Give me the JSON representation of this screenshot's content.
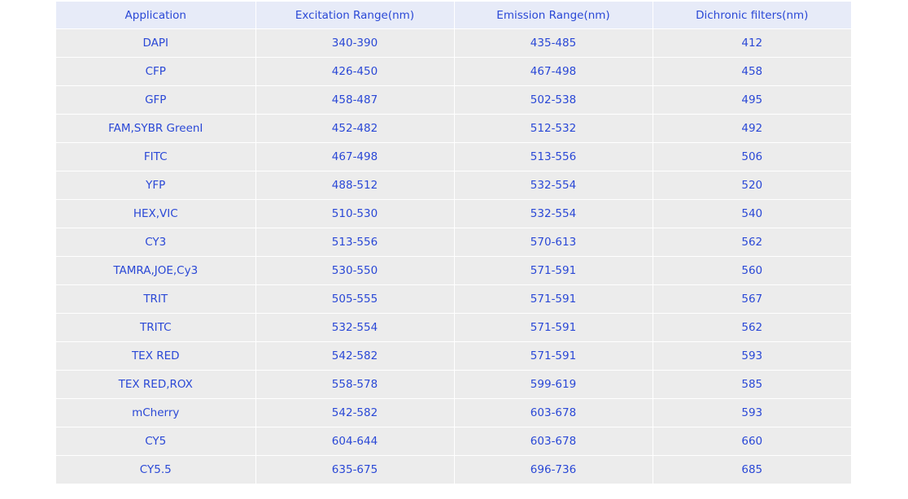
{
  "table": {
    "headers": [
      "Application",
      "Excitation Range(nm)",
      "Emission Range(nm)",
      "Dichronic filters(nm)"
    ],
    "rows": [
      [
        "DAPI",
        "340-390",
        "435-485",
        "412"
      ],
      [
        "CFP",
        "426-450",
        "467-498",
        "458"
      ],
      [
        "GFP",
        "458-487",
        "502-538",
        "495"
      ],
      [
        "FAM,SYBR GreenI",
        "452-482",
        "512-532",
        "492"
      ],
      [
        "FITC",
        "467-498",
        "513-556",
        "506"
      ],
      [
        "YFP",
        "488-512",
        "532-554",
        "520"
      ],
      [
        "HEX,VIC",
        "510-530",
        "532-554",
        "540"
      ],
      [
        "CY3",
        "513-556",
        "570-613",
        "562"
      ],
      [
        "TAMRA,JOE,Cy3",
        "530-550",
        "571-591",
        "560"
      ],
      [
        "TRIT",
        "505-555",
        "571-591",
        "567"
      ],
      [
        "TRITC",
        "532-554",
        "571-591",
        "562"
      ],
      [
        "TEX RED",
        "542-582",
        "571-591",
        "593"
      ],
      [
        "TEX RED,ROX",
        "558-578",
        "599-619",
        "585"
      ],
      [
        "mCherry",
        "542-582",
        "603-678",
        "593"
      ],
      [
        "CY5",
        "604-644",
        "603-678",
        "660"
      ],
      [
        "CY5.5",
        "635-675",
        "696-736",
        "685"
      ]
    ]
  },
  "colors": {
    "text": "#2a48d6",
    "header_background": "#e7ebf8",
    "row_background": "#ececec"
  }
}
